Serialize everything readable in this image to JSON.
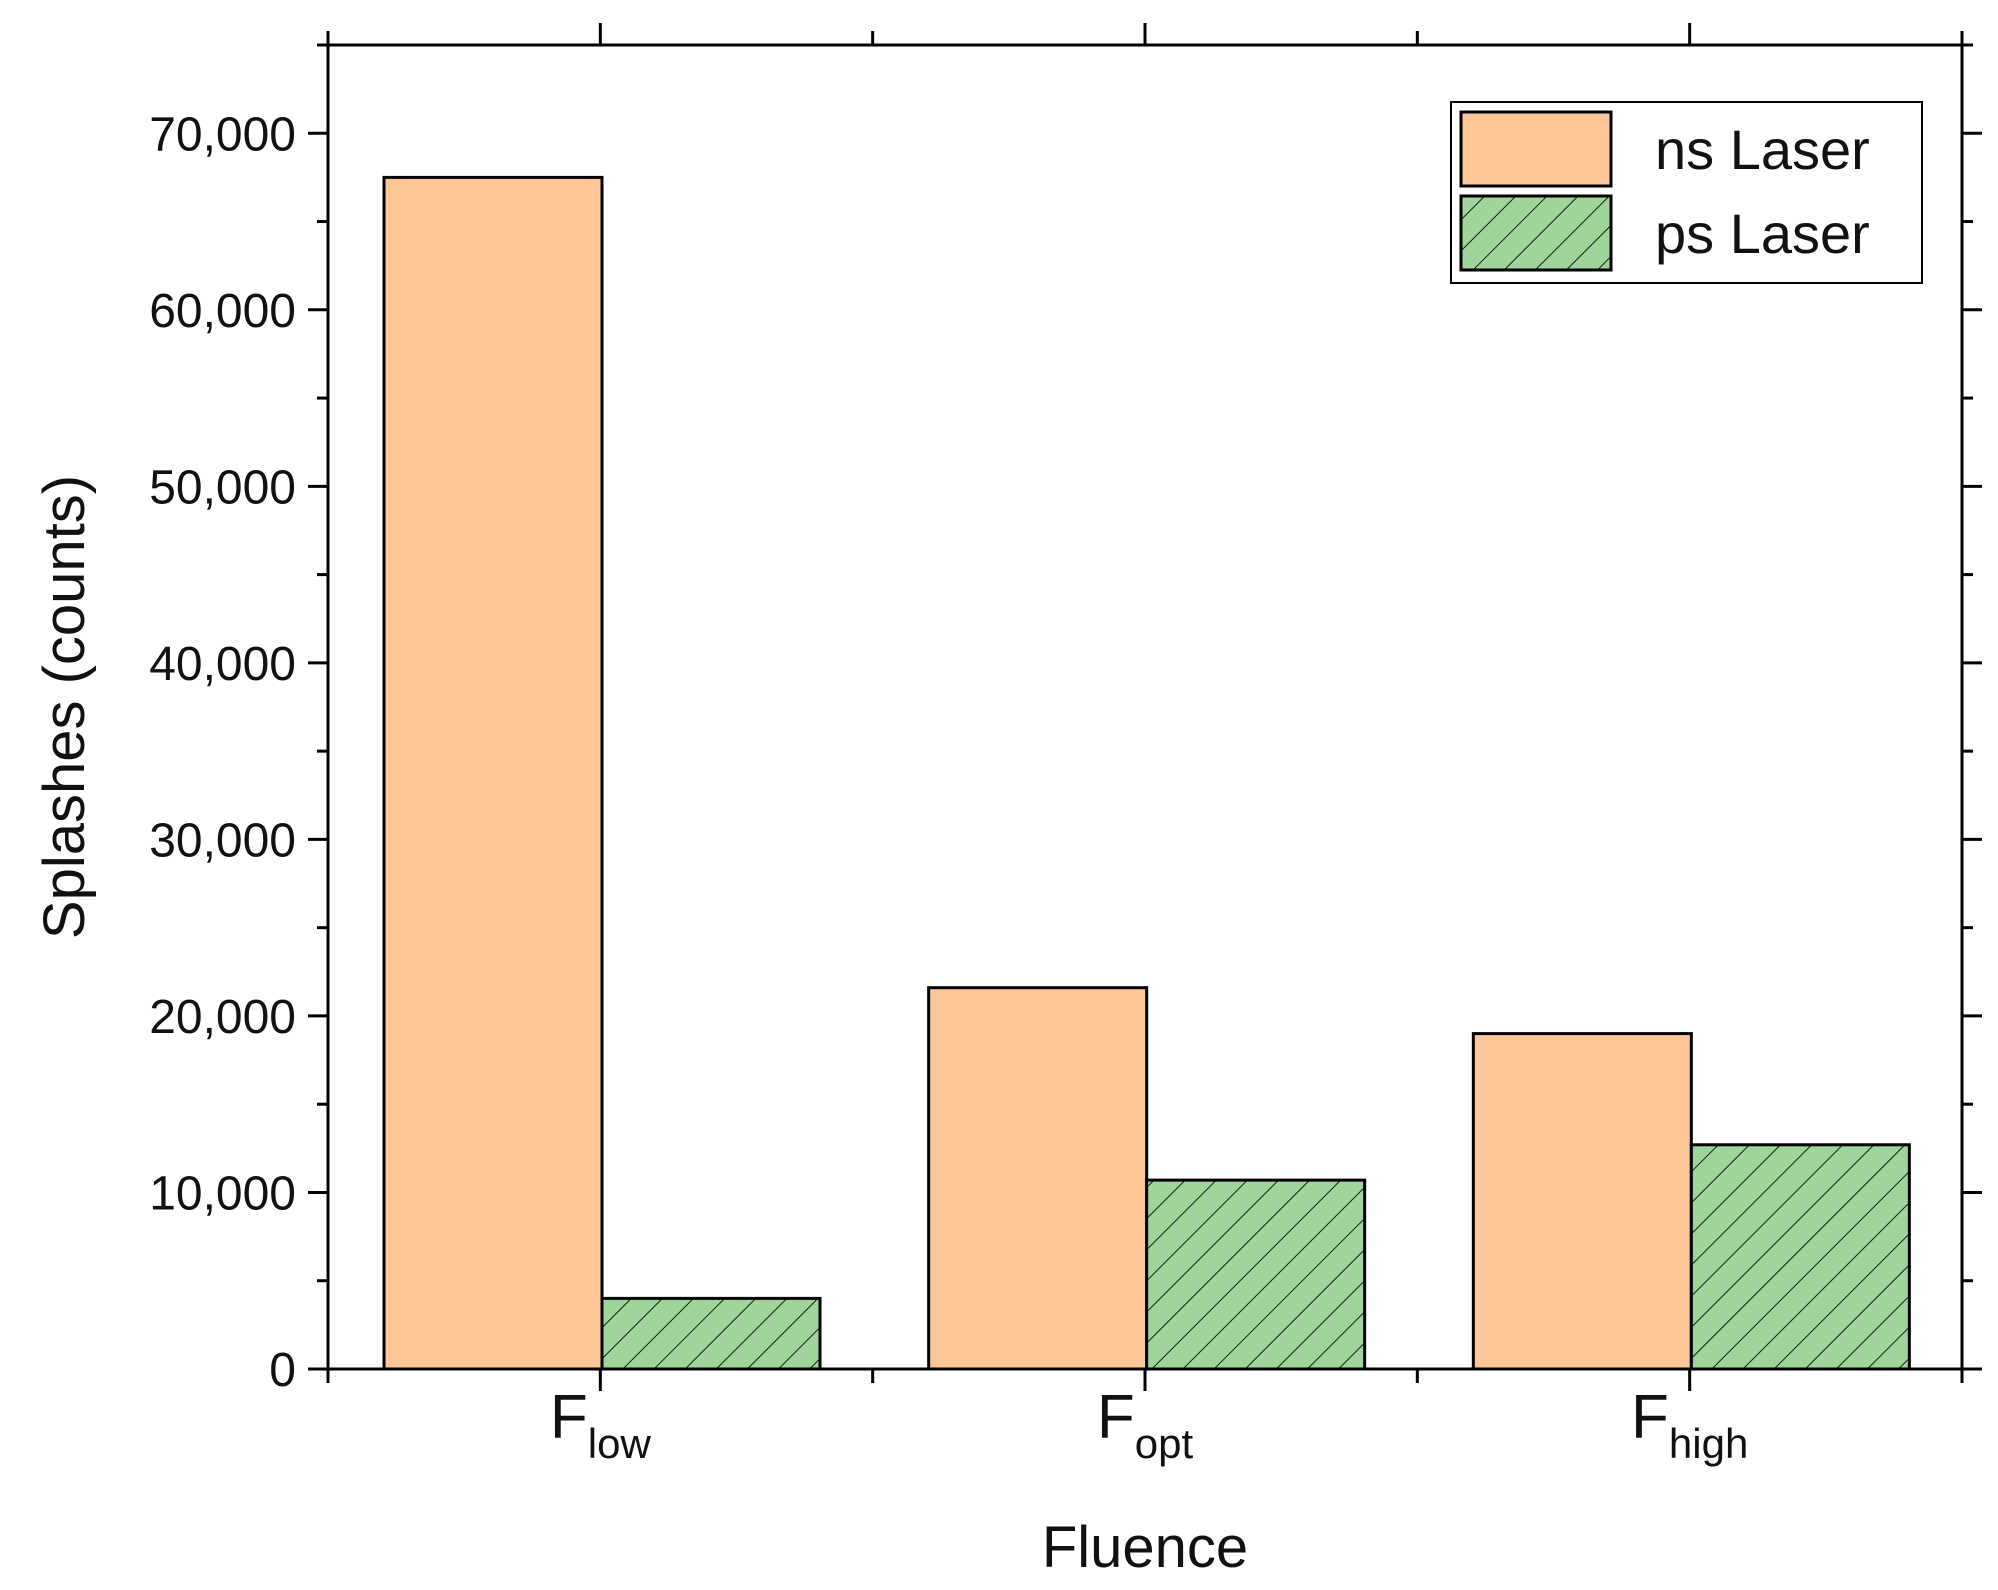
{
  "chart_data": {
    "type": "bar",
    "xlabel": "Fluence",
    "ylabel": "Splashes (counts)",
    "ylim": [
      0,
      75000
    ],
    "grid": false,
    "legend_position": "top-right",
    "categories": [
      {
        "main": "F",
        "sub": "low"
      },
      {
        "main": "F",
        "sub": "opt"
      },
      {
        "main": "F",
        "sub": "high"
      }
    ],
    "yticks": [
      0,
      10000,
      20000,
      30000,
      40000,
      50000,
      60000,
      70000
    ],
    "ytick_labels": [
      "0",
      "10,000",
      "20,000",
      "30,000",
      "40,000",
      "50,000",
      "60,000",
      "70,000"
    ],
    "series": [
      {
        "name": "ns Laser",
        "values": [
          67500,
          21600,
          19000
        ],
        "color": "#fdc696",
        "pattern": "solid"
      },
      {
        "name": "ps Laser",
        "values": [
          4000,
          10700,
          12700
        ],
        "color": "#9ed69a",
        "pattern": "hatch"
      }
    ]
  }
}
